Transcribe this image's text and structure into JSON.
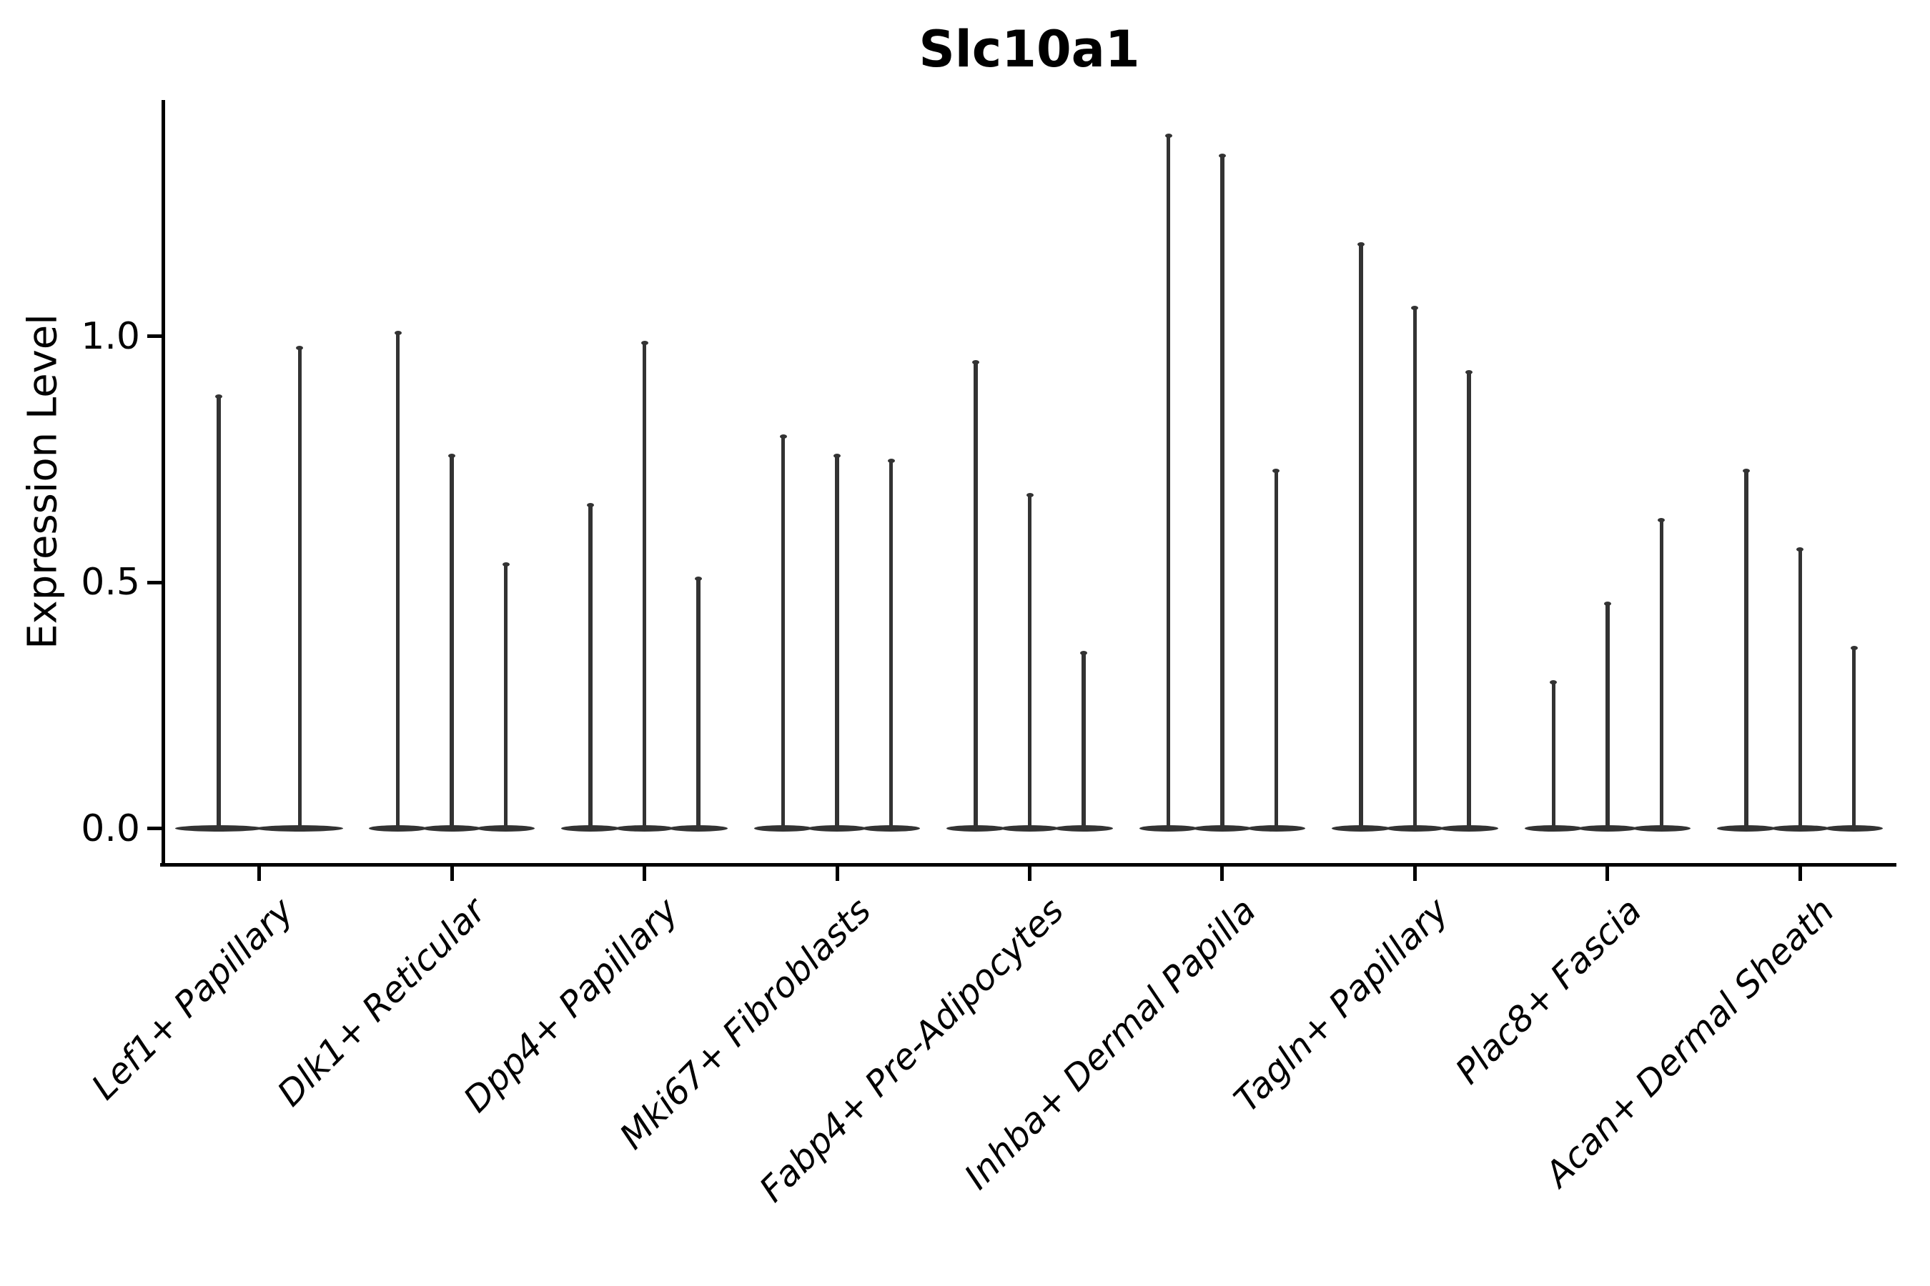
{
  "title": "Slc10a1",
  "chart_data": {
    "type": "violin",
    "title": "Slc10a1",
    "xlabel": "",
    "ylabel": "Expression Level",
    "ylim": [
      -0.07,
      1.48
    ],
    "grid": false,
    "legend": null,
    "yticks": [
      {
        "value": 0.0,
        "label": "0.0"
      },
      {
        "value": 0.5,
        "label": "0.5"
      },
      {
        "value": 1.0,
        "label": "1.0"
      }
    ],
    "categories": [
      "Lef1+ Papillary",
      "Dlk1+ Reticular",
      "Dpp4+ Papillary",
      "Mki67+ Fibroblasts",
      "Fabp4+ Pre-Adipocytes",
      "Inhba+ Dermal Papilla",
      "Tagln+ Papillary",
      "Plac8+ Fascia",
      "Acan+ Dermal Sheath"
    ],
    "series": [
      {
        "category": "Lef1+ Papillary",
        "violin_maxima": [
          0.88,
          0.98
        ]
      },
      {
        "category": "Dlk1+ Reticular",
        "violin_maxima": [
          1.01,
          0.76,
          0.54
        ]
      },
      {
        "category": "Dpp4+ Papillary",
        "violin_maxima": [
          0.66,
          0.99,
          0.51
        ]
      },
      {
        "category": "Mki67+ Fibroblasts",
        "violin_maxima": [
          0.8,
          0.76,
          0.75
        ]
      },
      {
        "category": "Fabp4+ Pre-Adipocytes",
        "violin_maxima": [
          0.95,
          0.68,
          0.36
        ]
      },
      {
        "category": "Inhba+ Dermal Papilla",
        "violin_maxima": [
          1.41,
          1.37,
          0.73
        ]
      },
      {
        "category": "Tagln+ Papillary",
        "violin_maxima": [
          1.19,
          1.06,
          0.93
        ]
      },
      {
        "category": "Plac8+ Fascia",
        "violin_maxima": [
          0.3,
          0.46,
          0.63
        ]
      },
      {
        "category": "Acan+ Dermal Sheath",
        "violin_maxima": [
          0.73,
          0.57,
          0.37
        ]
      }
    ],
    "description": "Violin plot of Slc10a1 expression per cluster; each violin's density mass sits at 0 (flat lens on the baseline) with a needle-thin spike rising to that violin's maximum expression value."
  },
  "colors": {
    "violin": "#333333",
    "axis": "#000000",
    "text": "#000000",
    "background": "#ffffff"
  }
}
